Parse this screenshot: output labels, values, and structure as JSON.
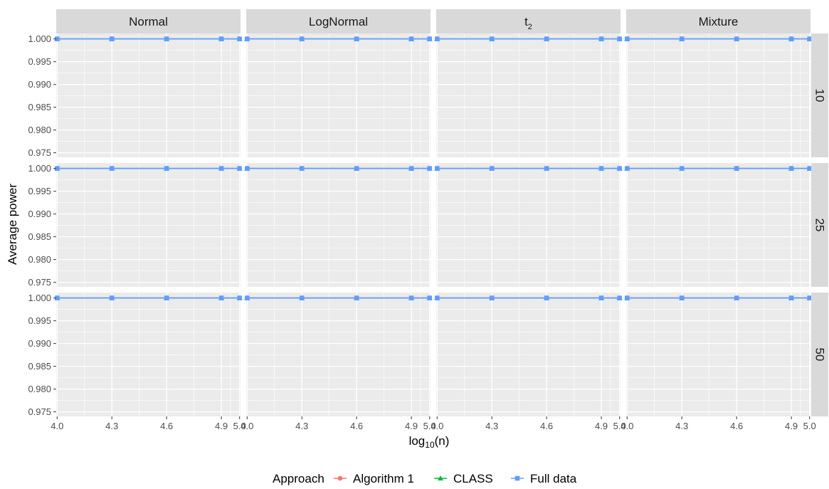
{
  "chart_data": {
    "type": "line",
    "ylabel": "Average power",
    "xlabel_main": "log",
    "xlabel_sub": "10",
    "xlabel_tail": "(n)",
    "facet_columns": [
      {
        "label": "Normal",
        "sub": ""
      },
      {
        "label": "LogNormal",
        "sub": ""
      },
      {
        "label": "t",
        "sub": "2"
      },
      {
        "label": "Mixture",
        "sub": ""
      }
    ],
    "facet_rows": [
      "10",
      "25",
      "50"
    ],
    "x": [
      4.0,
      4.3,
      4.6,
      4.9,
      5.0
    ],
    "x_ticks": [
      4.0,
      4.3,
      4.6,
      4.9,
      5.0
    ],
    "x_tick_labels": [
      "4.0",
      "4.3",
      "4.6",
      "4.9",
      "5.0"
    ],
    "xlim": [
      3.995,
      5.005
    ],
    "y_ticks": [
      0.975,
      0.98,
      0.985,
      0.99,
      0.995,
      1.0
    ],
    "y_tick_labels": [
      "0.975",
      "0.980",
      "0.985",
      "0.990",
      "0.995",
      "1.000"
    ],
    "ylim": [
      0.974,
      1.0012
    ],
    "grid": true,
    "legend_position": "bottom",
    "legend_title": "Approach",
    "series": [
      {
        "name": "Algorithm 1",
        "color": "#F8766D",
        "marker": "circle",
        "values": [
          1.0,
          1.0,
          1.0,
          1.0,
          1.0
        ]
      },
      {
        "name": "CLASS",
        "color": "#00BA38",
        "marker": "triangle",
        "values": [
          1.0,
          1.0,
          1.0,
          1.0,
          1.0
        ]
      },
      {
        "name": "Full data",
        "color": "#619CFF",
        "marker": "square",
        "values": [
          1.0,
          1.0,
          1.0,
          1.0,
          1.0
        ]
      }
    ],
    "panel_background": "#EBEBEB",
    "strip_background": "#D9D9D9"
  }
}
